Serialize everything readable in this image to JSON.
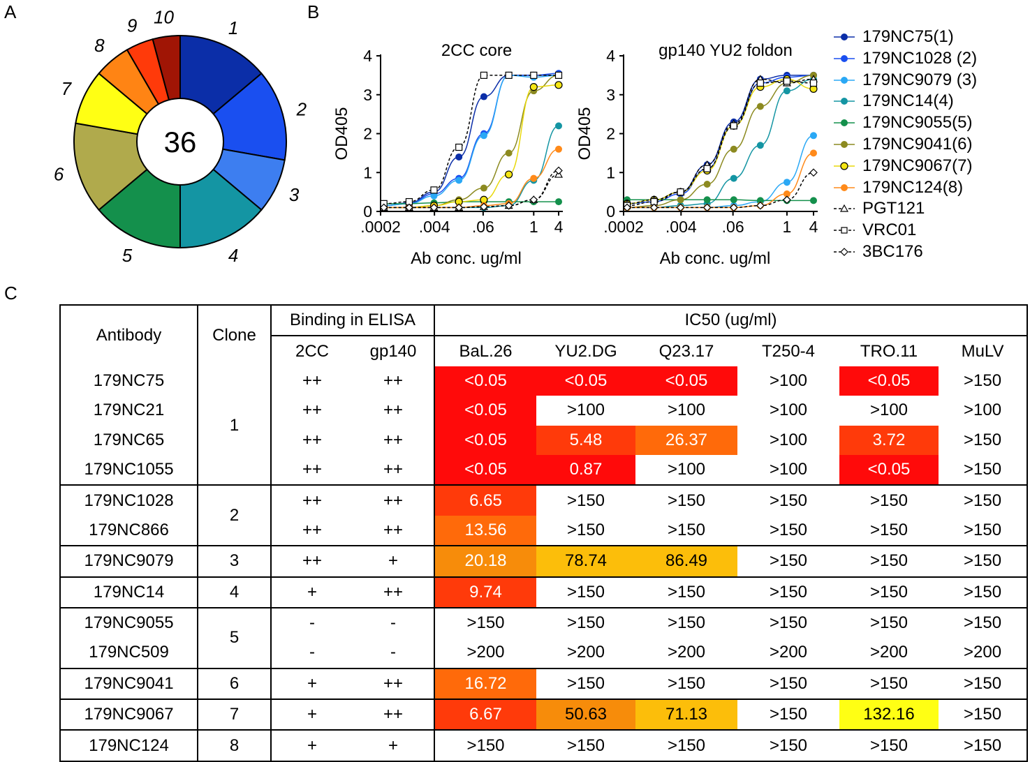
{
  "panels": {
    "a": "A",
    "b": "B",
    "c": "C"
  },
  "pie": {
    "center_label": "36",
    "slices": [
      {
        "label": "1",
        "value": 5,
        "color": "#0b2ea8"
      },
      {
        "label": "2",
        "value": 5,
        "color": "#1a4ff0"
      },
      {
        "label": "3",
        "value": 3,
        "color": "#3d7ef0"
      },
      {
        "label": "4",
        "value": 5,
        "color": "#1495a3"
      },
      {
        "label": "5",
        "value": 5,
        "color": "#14904c"
      },
      {
        "label": "6",
        "value": 5,
        "color": "#b0aa4c"
      },
      {
        "label": "7",
        "value": 3,
        "color": "#ffff14"
      },
      {
        "label": "8",
        "value": 2,
        "color": "#ff8414"
      },
      {
        "label": "9",
        "value": 1.5,
        "color": "#ff3a0a"
      },
      {
        "label": "10",
        "value": 1.5,
        "color": "#a01505"
      }
    ]
  },
  "chart_data": [
    {
      "type": "line",
      "title": "2CC core",
      "xlabel": "Ab conc. ug/ml",
      "ylabel": "OD405",
      "x_scale": "log",
      "x_ticks": [
        ".0002",
        ".004",
        ".06",
        "1",
        "4"
      ],
      "y_ticks": [
        "0",
        "1",
        "2",
        "3",
        "4"
      ],
      "ylim": [
        0,
        4
      ],
      "x": [
        0.00024,
        0.00098,
        0.0039,
        0.0156,
        0.0625,
        0.25,
        1,
        4
      ],
      "series": [
        {
          "name": "179NC75(1)",
          "values": [
            0.15,
            0.22,
            0.5,
            1.4,
            2.95,
            3.5,
            3.5,
            3.5
          ]
        },
        {
          "name": "179NC1028 (2)",
          "values": [
            0.15,
            0.2,
            0.45,
            0.85,
            2.0,
            3.5,
            3.5,
            3.55
          ]
        },
        {
          "name": "179NC9079 (3)",
          "values": [
            0.15,
            0.2,
            0.4,
            0.8,
            1.95,
            3.5,
            3.45,
            3.5
          ]
        },
        {
          "name": "179NC14(4)",
          "values": [
            0.1,
            0.1,
            0.1,
            0.1,
            0.1,
            0.15,
            0.8,
            2.2
          ]
        },
        {
          "name": "179NC9055(5)",
          "values": [
            0.2,
            0.2,
            0.22,
            0.25,
            0.25,
            0.25,
            0.25,
            0.25
          ]
        },
        {
          "name": "179NC9041(6)",
          "values": [
            0.1,
            0.1,
            0.15,
            0.3,
            0.6,
            1.5,
            3.1,
            3.5
          ]
        },
        {
          "name": "179NC9067(7)",
          "values": [
            0.1,
            0.1,
            0.15,
            0.25,
            0.3,
            0.95,
            3.2,
            3.25
          ]
        },
        {
          "name": "179NC124(8)",
          "values": [
            0.1,
            0.1,
            0.1,
            0.1,
            0.15,
            0.2,
            0.85,
            1.6
          ]
        },
        {
          "name": "PGT121",
          "values": [
            0.1,
            0.1,
            0.1,
            0.1,
            0.12,
            0.15,
            0.3,
            0.95
          ]
        },
        {
          "name": "VRC01",
          "values": [
            0.2,
            0.25,
            0.55,
            1.65,
            3.5,
            3.5,
            3.5,
            3.5
          ]
        },
        {
          "name": "3BC176",
          "values": [
            0.1,
            0.1,
            0.1,
            0.1,
            0.12,
            0.15,
            0.3,
            1.05
          ]
        }
      ]
    },
    {
      "type": "line",
      "title": "gp140 YU2 foldon",
      "xlabel": "Ab conc. ug/ml",
      "ylabel": "OD405",
      "x_scale": "log",
      "x_ticks": [
        ".0002",
        ".004",
        ".06",
        "1",
        "4"
      ],
      "y_ticks": [
        "0",
        "1",
        "2",
        "3",
        "4"
      ],
      "ylim": [
        0,
        4
      ],
      "x": [
        0.00024,
        0.00098,
        0.0039,
        0.0156,
        0.0625,
        0.25,
        1,
        4
      ],
      "series": [
        {
          "name": "179NC75(1)",
          "values": [
            0.2,
            0.3,
            0.5,
            1.2,
            2.3,
            3.4,
            3.5,
            3.5
          ]
        },
        {
          "name": "179NC1028 (2)",
          "values": [
            0.2,
            0.25,
            0.45,
            1.1,
            2.2,
            3.3,
            3.45,
            3.5
          ]
        },
        {
          "name": "179NC9079 (3)",
          "values": [
            0.1,
            0.1,
            0.1,
            0.1,
            0.15,
            0.25,
            0.75,
            1.95
          ]
        },
        {
          "name": "179NC14(4)",
          "values": [
            0.1,
            0.1,
            0.15,
            0.2,
            0.85,
            1.7,
            3.1,
            3.4
          ]
        },
        {
          "name": "179NC9055(5)",
          "values": [
            0.3,
            0.3,
            0.3,
            0.3,
            0.3,
            0.28,
            0.28,
            0.28
          ]
        },
        {
          "name": "179NC9041(6)",
          "values": [
            0.1,
            0.15,
            0.3,
            0.7,
            1.6,
            2.7,
            3.3,
            3.5
          ]
        },
        {
          "name": "179NC9067(7)",
          "values": [
            0.2,
            0.3,
            0.5,
            1.05,
            2.2,
            3.2,
            3.4,
            3.15
          ]
        },
        {
          "name": "179NC124(8)",
          "values": [
            0.1,
            0.1,
            0.1,
            0.1,
            0.1,
            0.15,
            0.45,
            1.5
          ]
        },
        {
          "name": "PGT121",
          "values": [
            0.2,
            0.3,
            0.5,
            1.2,
            2.25,
            3.4,
            3.3,
            3.4
          ]
        },
        {
          "name": "VRC01",
          "values": [
            0.15,
            0.25,
            0.5,
            1.1,
            2.2,
            3.3,
            3.35,
            3.3
          ]
        },
        {
          "name": "3BC176",
          "values": [
            0.1,
            0.1,
            0.1,
            0.1,
            0.1,
            0.15,
            0.3,
            1.0
          ]
        }
      ]
    }
  ],
  "series_styles": [
    {
      "color": "#0b2ea8",
      "marker": "circle",
      "dashed": false
    },
    {
      "color": "#1a4ff0",
      "marker": "circle",
      "dashed": false
    },
    {
      "color": "#2aa8f5",
      "marker": "circle",
      "dashed": false
    },
    {
      "color": "#1495a3",
      "marker": "circle",
      "dashed": false
    },
    {
      "color": "#14904c",
      "marker": "circle",
      "dashed": false
    },
    {
      "color": "#8c8a20",
      "marker": "circle",
      "dashed": false
    },
    {
      "color": "#f5e614",
      "marker": "circle-outline",
      "dashed": false
    },
    {
      "color": "#ff8a1a",
      "marker": "circle",
      "dashed": false
    },
    {
      "color": "#000000",
      "marker": "triangle",
      "dashed": true
    },
    {
      "color": "#000000",
      "marker": "square",
      "dashed": true
    },
    {
      "color": "#000000",
      "marker": "diamond",
      "dashed": true
    }
  ],
  "legend": [
    "179NC75(1)",
    "179NC1028 (2)",
    "179NC9079 (3)",
    "179NC14(4)",
    "179NC9055(5)",
    "179NC9041(6)",
    "179NC9067(7)",
    "179NC124(8)",
    "PGT121",
    "VRC01",
    "3BC176"
  ],
  "table": {
    "header": {
      "antibody": "Antibody",
      "clone": "Clone",
      "binding_group": "Binding in ELISA",
      "ic50_group": "IC50 (ug/ml)",
      "binding_cols": [
        "2CC",
        "gp140"
      ],
      "ic50_cols": [
        "BaL.26",
        "YU2.DG",
        "Q23.17",
        "T250-4",
        "TRO.11",
        "MuLV"
      ]
    },
    "colors": {
      "red": "#ff0a0a",
      "red_orange": "#ff3a0a",
      "orange": "#ff6a0a",
      "dark_orange": "#f78c0a",
      "amber": "#fcbe0a",
      "yellow": "#ffff14"
    },
    "rows": [
      {
        "antibody": "179NC75",
        "clone": "1",
        "b2cc": "++",
        "bgp140": "++",
        "ic50": [
          {
            "v": "<0.05",
            "c": "red"
          },
          {
            "v": "<0.05",
            "c": "red"
          },
          {
            "v": "<0.05",
            "c": "red"
          },
          {
            "v": ">100"
          },
          {
            "v": "<0.05",
            "c": "red"
          },
          {
            "v": ">150"
          }
        ]
      },
      {
        "antibody": "179NC21",
        "clone": "",
        "b2cc": "++",
        "bgp140": "++",
        "ic50": [
          {
            "v": "<0.05",
            "c": "red"
          },
          {
            "v": ">100"
          },
          {
            "v": ">100"
          },
          {
            "v": ">100"
          },
          {
            "v": ">100"
          },
          {
            "v": ">100"
          }
        ]
      },
      {
        "antibody": "179NC65",
        "clone": "",
        "b2cc": "++",
        "bgp140": "++",
        "ic50": [
          {
            "v": "<0.05",
            "c": "red"
          },
          {
            "v": "5.48",
            "c": "red_orange"
          },
          {
            "v": "26.37",
            "c": "orange"
          },
          {
            "v": ">100"
          },
          {
            "v": "3.72",
            "c": "red_orange"
          },
          {
            "v": ">150"
          }
        ]
      },
      {
        "antibody": "179NC1055",
        "clone": "",
        "b2cc": "++",
        "bgp140": "++",
        "ic50": [
          {
            "v": "<0.05",
            "c": "red"
          },
          {
            "v": "0.87",
            "c": "red"
          },
          {
            "v": ">100"
          },
          {
            "v": ">100"
          },
          {
            "v": "<0.05",
            "c": "red"
          },
          {
            "v": ">150"
          }
        ]
      },
      {
        "antibody": "179NC1028",
        "clone": "2",
        "b2cc": "++",
        "bgp140": "++",
        "ic50": [
          {
            "v": "6.65",
            "c": "red_orange"
          },
          {
            "v": ">150"
          },
          {
            "v": ">150"
          },
          {
            "v": ">150"
          },
          {
            "v": ">150"
          },
          {
            "v": ">150"
          }
        ]
      },
      {
        "antibody": "179NC866",
        "clone": "",
        "b2cc": "++",
        "bgp140": "++",
        "ic50": [
          {
            "v": "13.56",
            "c": "orange"
          },
          {
            "v": ">150"
          },
          {
            "v": ">150"
          },
          {
            "v": ">150"
          },
          {
            "v": ">150"
          },
          {
            "v": ">150"
          }
        ]
      },
      {
        "antibody": "179NC9079",
        "clone": "3",
        "b2cc": "++",
        "bgp140": "+",
        "ic50": [
          {
            "v": "20.18",
            "c": "dark_orange"
          },
          {
            "v": "78.74",
            "c": "amber"
          },
          {
            "v": "86.49",
            "c": "amber"
          },
          {
            "v": ">150"
          },
          {
            "v": ">150"
          },
          {
            "v": ">150"
          }
        ]
      },
      {
        "antibody": "179NC14",
        "clone": "4",
        "b2cc": "+",
        "bgp140": "++",
        "ic50": [
          {
            "v": "9.74",
            "c": "red_orange"
          },
          {
            "v": ">150"
          },
          {
            "v": ">150"
          },
          {
            "v": ">150"
          },
          {
            "v": ">150"
          },
          {
            "v": ">150"
          }
        ]
      },
      {
        "antibody": "179NC9055",
        "clone": "5",
        "b2cc": "-",
        "bgp140": "-",
        "ic50": [
          {
            "v": ">150"
          },
          {
            "v": ">150"
          },
          {
            "v": ">150"
          },
          {
            "v": ">150"
          },
          {
            "v": ">150"
          },
          {
            "v": ">150"
          }
        ]
      },
      {
        "antibody": "179NC509",
        "clone": "",
        "b2cc": "-",
        "bgp140": "-",
        "ic50": [
          {
            "v": ">200"
          },
          {
            "v": ">200"
          },
          {
            "v": ">200"
          },
          {
            "v": ">200"
          },
          {
            "v": ">200"
          },
          {
            "v": ">200"
          }
        ]
      },
      {
        "antibody": "179NC9041",
        "clone": "6",
        "b2cc": "+",
        "bgp140": "++",
        "ic50": [
          {
            "v": "16.72",
            "c": "orange"
          },
          {
            "v": ">150"
          },
          {
            "v": ">150"
          },
          {
            "v": ">150"
          },
          {
            "v": ">150"
          },
          {
            "v": ">150"
          }
        ]
      },
      {
        "antibody": "179NC9067",
        "clone": "7",
        "b2cc": "+",
        "bgp140": "++",
        "ic50": [
          {
            "v": "6.67",
            "c": "red_orange"
          },
          {
            "v": "50.63",
            "c": "dark_orange"
          },
          {
            "v": "71.13",
            "c": "amber"
          },
          {
            "v": ">150"
          },
          {
            "v": "132.16",
            "c": "yellow"
          },
          {
            "v": ">150"
          }
        ]
      },
      {
        "antibody": "179NC124",
        "clone": "8",
        "b2cc": "+",
        "bgp140": "+",
        "ic50": [
          {
            "v": ">150"
          },
          {
            "v": ">150"
          },
          {
            "v": ">150"
          },
          {
            "v": ">150"
          },
          {
            "v": ">150"
          },
          {
            "v": ">150"
          }
        ]
      }
    ]
  }
}
